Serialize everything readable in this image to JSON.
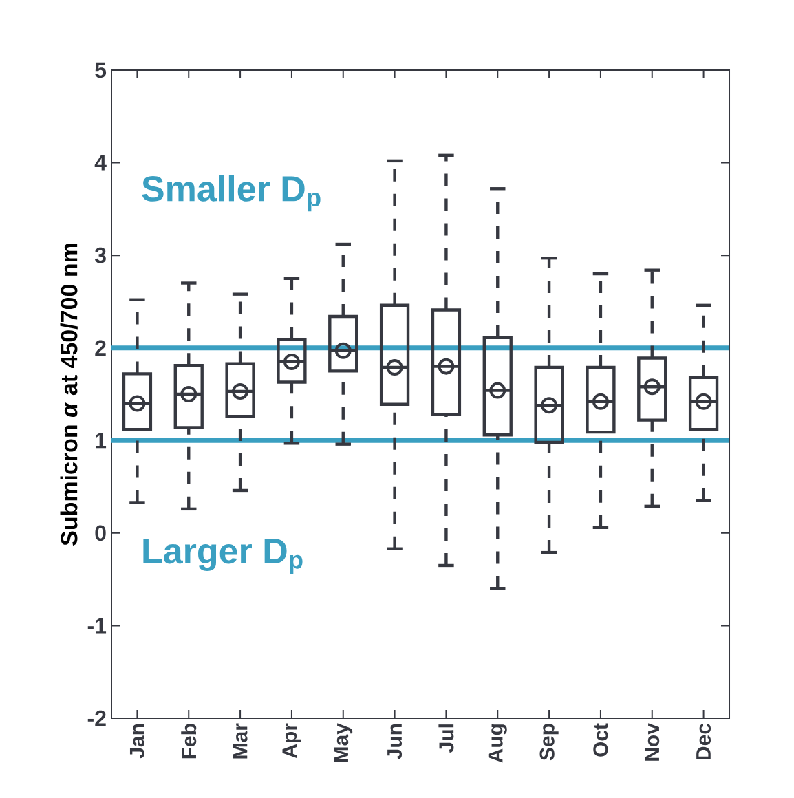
{
  "chart_data": {
    "type": "box",
    "ylabel": "Submicron *α* at 450/700 nm",
    "categories": [
      "Jan",
      "Feb",
      "Mar",
      "Apr",
      "May",
      "Jun",
      "Jul",
      "Aug",
      "Sep",
      "Oct",
      "Nov",
      "Dec"
    ],
    "boxes": [
      {
        "low": 0.33,
        "q1": 1.12,
        "median": 1.4,
        "q3": 1.72,
        "high": 2.52,
        "mean": 1.4
      },
      {
        "low": 0.26,
        "q1": 1.14,
        "median": 1.5,
        "q3": 1.81,
        "high": 2.7,
        "mean": 1.5
      },
      {
        "low": 0.46,
        "q1": 1.26,
        "median": 1.53,
        "q3": 1.83,
        "high": 2.58,
        "mean": 1.53
      },
      {
        "low": 0.97,
        "q1": 1.63,
        "median": 1.85,
        "q3": 2.09,
        "high": 2.75,
        "mean": 1.85
      },
      {
        "low": 0.96,
        "q1": 1.75,
        "median": 1.97,
        "q3": 2.34,
        "high": 3.12,
        "mean": 1.97
      },
      {
        "low": -0.17,
        "q1": 1.39,
        "median": 1.79,
        "q3": 2.46,
        "high": 4.02,
        "mean": 1.79
      },
      {
        "low": -0.35,
        "q1": 1.28,
        "median": 1.8,
        "q3": 2.41,
        "high": 4.08,
        "mean": 1.8
      },
      {
        "low": -0.6,
        "q1": 1.06,
        "median": 1.54,
        "q3": 2.11,
        "high": 3.72,
        "mean": 1.54
      },
      {
        "low": -0.21,
        "q1": 0.98,
        "median": 1.38,
        "q3": 1.79,
        "high": 2.97,
        "mean": 1.38
      },
      {
        "low": 0.06,
        "q1": 1.09,
        "median": 1.42,
        "q3": 1.79,
        "high": 2.8,
        "mean": 1.42
      },
      {
        "low": 0.29,
        "q1": 1.22,
        "median": 1.58,
        "q3": 1.89,
        "high": 2.84,
        "mean": 1.58
      },
      {
        "low": 0.35,
        "q1": 1.12,
        "median": 1.42,
        "q3": 1.68,
        "high": 2.46,
        "mean": 1.42
      }
    ],
    "color": "#363840",
    "marker": "circle",
    "line_style": "dashed",
    "ylim": [
      -2,
      5
    ],
    "yticks": [
      -2,
      -1,
      0,
      1,
      2,
      3,
      4,
      5
    ],
    "ref_lines": [
      {
        "axis": "y",
        "value": 2,
        "color": "#3a9fc1"
      },
      {
        "axis": "y",
        "value": 1,
        "color": "#3a9fc1"
      }
    ],
    "annotations": [
      "Smaller D$_{p}$",
      "Larger D$_{p}$"
    ]
  }
}
